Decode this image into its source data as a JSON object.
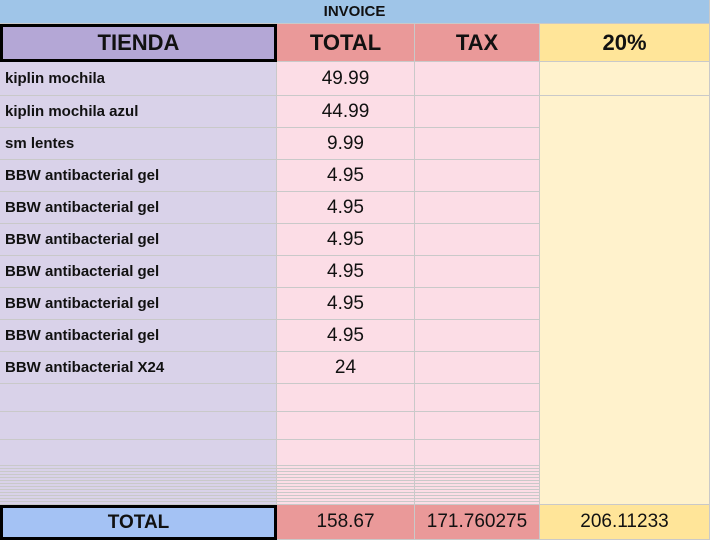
{
  "title": "INVOICE",
  "header": [
    "TIENDA",
    "TOTAL",
    "TAX",
    "20%"
  ],
  "rows": [
    [
      "kiplin mochila",
      "49.99"
    ],
    [
      "kiplin mochila azul",
      "44.99"
    ],
    [
      "sm lentes",
      "9.99"
    ],
    [
      "BBW antibacterial gel",
      "4.95"
    ],
    [
      "BBW antibacterial gel",
      "4.95"
    ],
    [
      "BBW antibacterial gel",
      "4.95"
    ],
    [
      "BBW antibacterial gel",
      "4.95"
    ],
    [
      "BBW antibacterial gel",
      "4.95"
    ],
    [
      "BBW antibacterial gel",
      "4.95"
    ],
    [
      "BBW antibacterial X24",
      "24"
    ]
  ],
  "totals": [
    "TOTAL",
    "158.67",
    "171.760275",
    "206.11233"
  ]
}
